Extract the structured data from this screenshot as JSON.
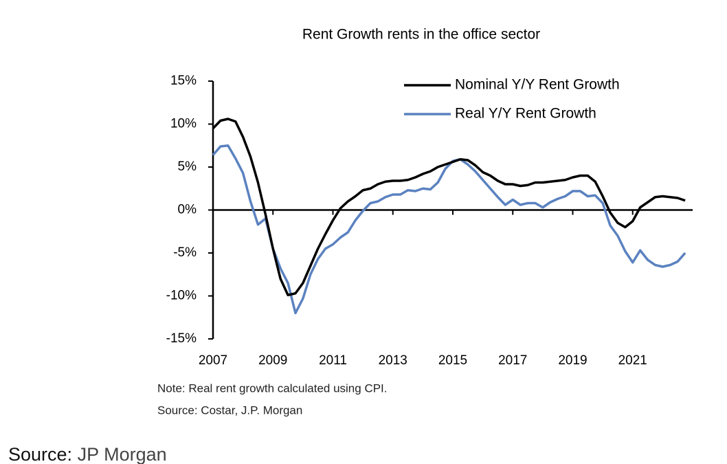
{
  "chart_data": {
    "type": "line",
    "title": "Rent Growth rents in the office sector",
    "note": "Note: Real rent growth calculated using CPI.",
    "source": "Source: Costar, J.P. Morgan",
    "x": [
      2007,
      2007.25,
      2007.5,
      2007.75,
      2008,
      2008.25,
      2008.5,
      2008.75,
      2009,
      2009.25,
      2009.5,
      2009.75,
      2010,
      2010.25,
      2010.5,
      2010.75,
      2011,
      2011.25,
      2011.5,
      2011.75,
      2012,
      2012.25,
      2012.5,
      2012.75,
      2013,
      2013.25,
      2013.5,
      2013.75,
      2014,
      2014.25,
      2014.5,
      2014.75,
      2015,
      2015.25,
      2015.5,
      2015.75,
      2016,
      2016.25,
      2016.5,
      2016.75,
      2017,
      2017.25,
      2017.5,
      2017.75,
      2018,
      2018.25,
      2018.5,
      2018.75,
      2019,
      2019.25,
      2019.5,
      2019.75,
      2020,
      2020.25,
      2020.5,
      2020.75,
      2021,
      2021.25,
      2021.5,
      2021.75,
      2022,
      2022.25,
      2022.5,
      2022.75
    ],
    "series": [
      {
        "name": "Nominal Y/Y Rent Growth",
        "color": "#000000",
        "values": [
          9.5,
          10.4,
          10.6,
          10.3,
          8.5,
          6.2,
          3.2,
          -0.5,
          -4.5,
          -8,
          -9.9,
          -9.7,
          -8.5,
          -6.5,
          -4.5,
          -2.8,
          -1.2,
          0.2,
          1.0,
          1.6,
          2.3,
          2.5,
          3.0,
          3.3,
          3.4,
          3.4,
          3.5,
          3.8,
          4.2,
          4.5,
          5.0,
          5.3,
          5.6,
          5.9,
          5.8,
          5.2,
          4.4,
          4.0,
          3.4,
          3.0,
          3.0,
          2.8,
          2.9,
          3.2,
          3.2,
          3.3,
          3.4,
          3.5,
          3.8,
          4.0,
          4.0,
          3.3,
          1.6,
          -0.3,
          -1.5,
          -2.0,
          -1.3,
          0.3,
          0.9,
          1.5,
          1.6,
          1.5,
          1.4,
          1.1
        ]
      },
      {
        "name": "Real Y/Y Rent Growth",
        "color": "#5b82c0",
        "values": [
          6.4,
          7.4,
          7.5,
          6.0,
          4.3,
          1.0,
          -1.7,
          -1.0,
          -4.5,
          -6.8,
          -8.5,
          -12,
          -10.3,
          -7.5,
          -5.7,
          -4.5,
          -4.0,
          -3.2,
          -2.6,
          -1.2,
          -0.1,
          0.8,
          1.0,
          1.5,
          1.8,
          1.8,
          2.3,
          2.2,
          2.5,
          2.4,
          3.2,
          4.8,
          5.7,
          5.9,
          5.3,
          4.5,
          3.5,
          2.5,
          1.5,
          0.6,
          1.2,
          0.6,
          0.8,
          0.8,
          0.3,
          0.9,
          1.3,
          1.6,
          2.2,
          2.2,
          1.6,
          1.7,
          0.8,
          -1.8,
          -3.0,
          -4.8,
          -6.1,
          -4.7,
          -5.8,
          -6.4,
          -6.6,
          -6.4,
          -6.0,
          -5.0
        ]
      }
    ],
    "xlim": [
      2007,
      2023
    ],
    "xticks": [
      2007,
      2009,
      2011,
      2013,
      2015,
      2017,
      2019,
      2021
    ],
    "ylim": [
      -15,
      15
    ],
    "yticks": [
      {
        "value": -15,
        "label": "-15%"
      },
      {
        "value": -10,
        "label": "-10%"
      },
      {
        "value": -5,
        "label": "-5%"
      },
      {
        "value": 0,
        "label": "0%"
      },
      {
        "value": 5,
        "label": "5%"
      },
      {
        "value": 10,
        "label": "10%"
      },
      {
        "value": 15,
        "label": "15%"
      }
    ],
    "legend": "top-right",
    "grid": false
  },
  "footer": {
    "label": "Source:",
    "value": "JP Morgan"
  }
}
